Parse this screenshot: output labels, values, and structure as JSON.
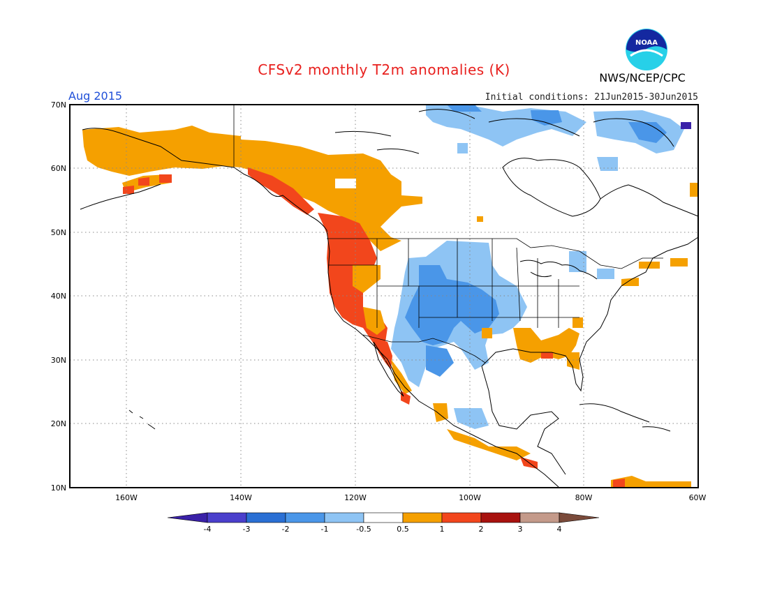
{
  "header": {
    "title": "CFSv2 monthly T2m anomalies (K)",
    "month": "Aug 2015",
    "initial_conditions": "Initial conditions: 21Jun2015-30Jun2015",
    "agency": "NWS/NCEP/CPC",
    "logo_text": "NOAA"
  },
  "axes": {
    "lat_labels": [
      "70N",
      "60N",
      "50N",
      "40N",
      "30N",
      "20N",
      "10N"
    ],
    "lon_labels": [
      "160W",
      "140W",
      "120W",
      "100W",
      "80W",
      "60W"
    ]
  },
  "colorbar": {
    "labels": [
      "-4",
      "-3",
      "-2",
      "-1",
      "-0.5",
      "0.5",
      "1",
      "2",
      "3",
      "4"
    ],
    "colors": [
      "#3a21a8",
      "#4a3fcc",
      "#2a6fd4",
      "#4a96e8",
      "#8ec4f4",
      "#ffffff",
      "#f5a000",
      "#f2461c",
      "#a8120e",
      "#c49a8a",
      "#7a4a3a"
    ]
  },
  "colors": {
    "warm_05": "#f5a000",
    "warm_1": "#f2461c",
    "cool_05": "#8ec4f4",
    "cool_1": "#4a96e8",
    "cool_2": "#2a6fd4",
    "cool_3": "#4a3fcc",
    "title": "#e8201e",
    "month": "#1f4fd8"
  }
}
